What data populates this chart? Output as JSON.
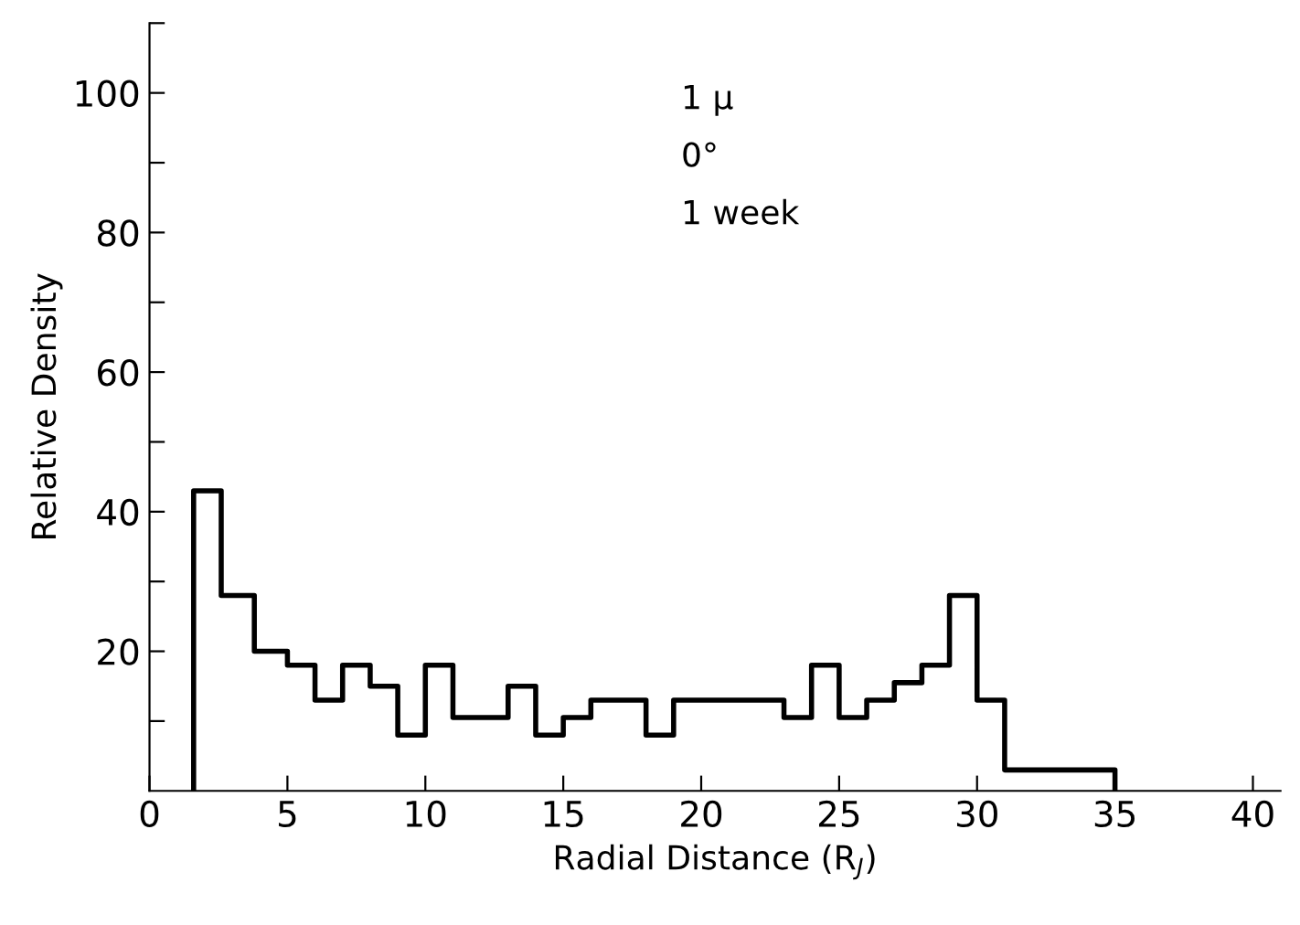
{
  "chart_data": {
    "type": "histogram",
    "xlabel": "Radial Distance (R$_{J}$)",
    "ylabel": "Relative Density",
    "annotations": [
      "1 μ",
      "0°",
      "1 week"
    ],
    "bins": [
      1.6,
      2.6,
      3.8,
      5,
      6,
      7,
      8,
      9,
      10,
      11,
      13,
      14,
      15,
      16,
      18,
      19,
      23,
      24,
      25,
      26,
      27,
      28,
      29,
      30,
      31,
      35
    ],
    "values": [
      43,
      28,
      20,
      18,
      13,
      18,
      15,
      8,
      18,
      10.5,
      15,
      8,
      10.5,
      13,
      8,
      13,
      10.5,
      18,
      10.5,
      13,
      15.5,
      18,
      28,
      13,
      3
    ],
    "color": "#000000",
    "xlim": [
      0,
      41
    ],
    "xticks": [
      0,
      5,
      10,
      15,
      20,
      25,
      30,
      35,
      40
    ],
    "ylim": [
      0,
      110
    ],
    "yticks": [
      {
        "value": 10,
        "label": null
      },
      20,
      {
        "value": 30,
        "label": null
      },
      40,
      {
        "value": 50,
        "label": null
      },
      60,
      {
        "value": 70,
        "label": null
      },
      80,
      {
        "value": 90,
        "label": null
      },
      100,
      {
        "value": 110,
        "label": null
      }
    ],
    "grid": false,
    "legend": false
  }
}
